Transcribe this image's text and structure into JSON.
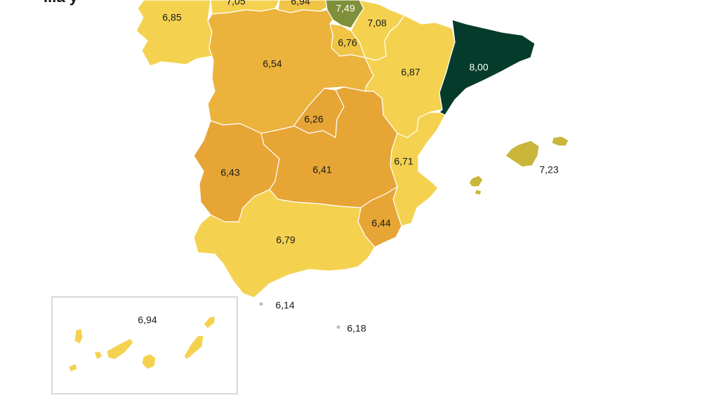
{
  "title_fragment": "...a y",
  "colors": {
    "very_light": "#f4d250",
    "light": "#f0c445",
    "mid": "#ebb33c",
    "dark": "#e6a535",
    "olive": "#c9b63a",
    "green": "#7f8f3a",
    "catalonia": "#043b2a",
    "dot": "#b8b8b8",
    "inset_border": "#c8c8c8"
  },
  "regions": [
    {
      "id": "galicia",
      "value": "6,85"
    },
    {
      "id": "asturias",
      "value": "7,05"
    },
    {
      "id": "cantabria",
      "value": "6,94"
    },
    {
      "id": "pais-vasco",
      "value": "7,49"
    },
    {
      "id": "navarra",
      "value": "7,08"
    },
    {
      "id": "la-rioja",
      "value": "6,76"
    },
    {
      "id": "aragon",
      "value": "6,87"
    },
    {
      "id": "cataluna",
      "value": "8,00"
    },
    {
      "id": "castilla-leon",
      "value": "6,54"
    },
    {
      "id": "madrid",
      "value": "6,26"
    },
    {
      "id": "extremadura",
      "value": "6,43"
    },
    {
      "id": "castilla-la-mancha",
      "value": "6,41"
    },
    {
      "id": "valencia",
      "value": "6,71"
    },
    {
      "id": "murcia",
      "value": "6,44"
    },
    {
      "id": "andalucia",
      "value": "6,79"
    },
    {
      "id": "baleares",
      "value": "7,23"
    },
    {
      "id": "ceuta",
      "value": "6,14"
    },
    {
      "id": "melilla",
      "value": "6,18"
    },
    {
      "id": "canarias",
      "value": "6,94"
    }
  ]
}
